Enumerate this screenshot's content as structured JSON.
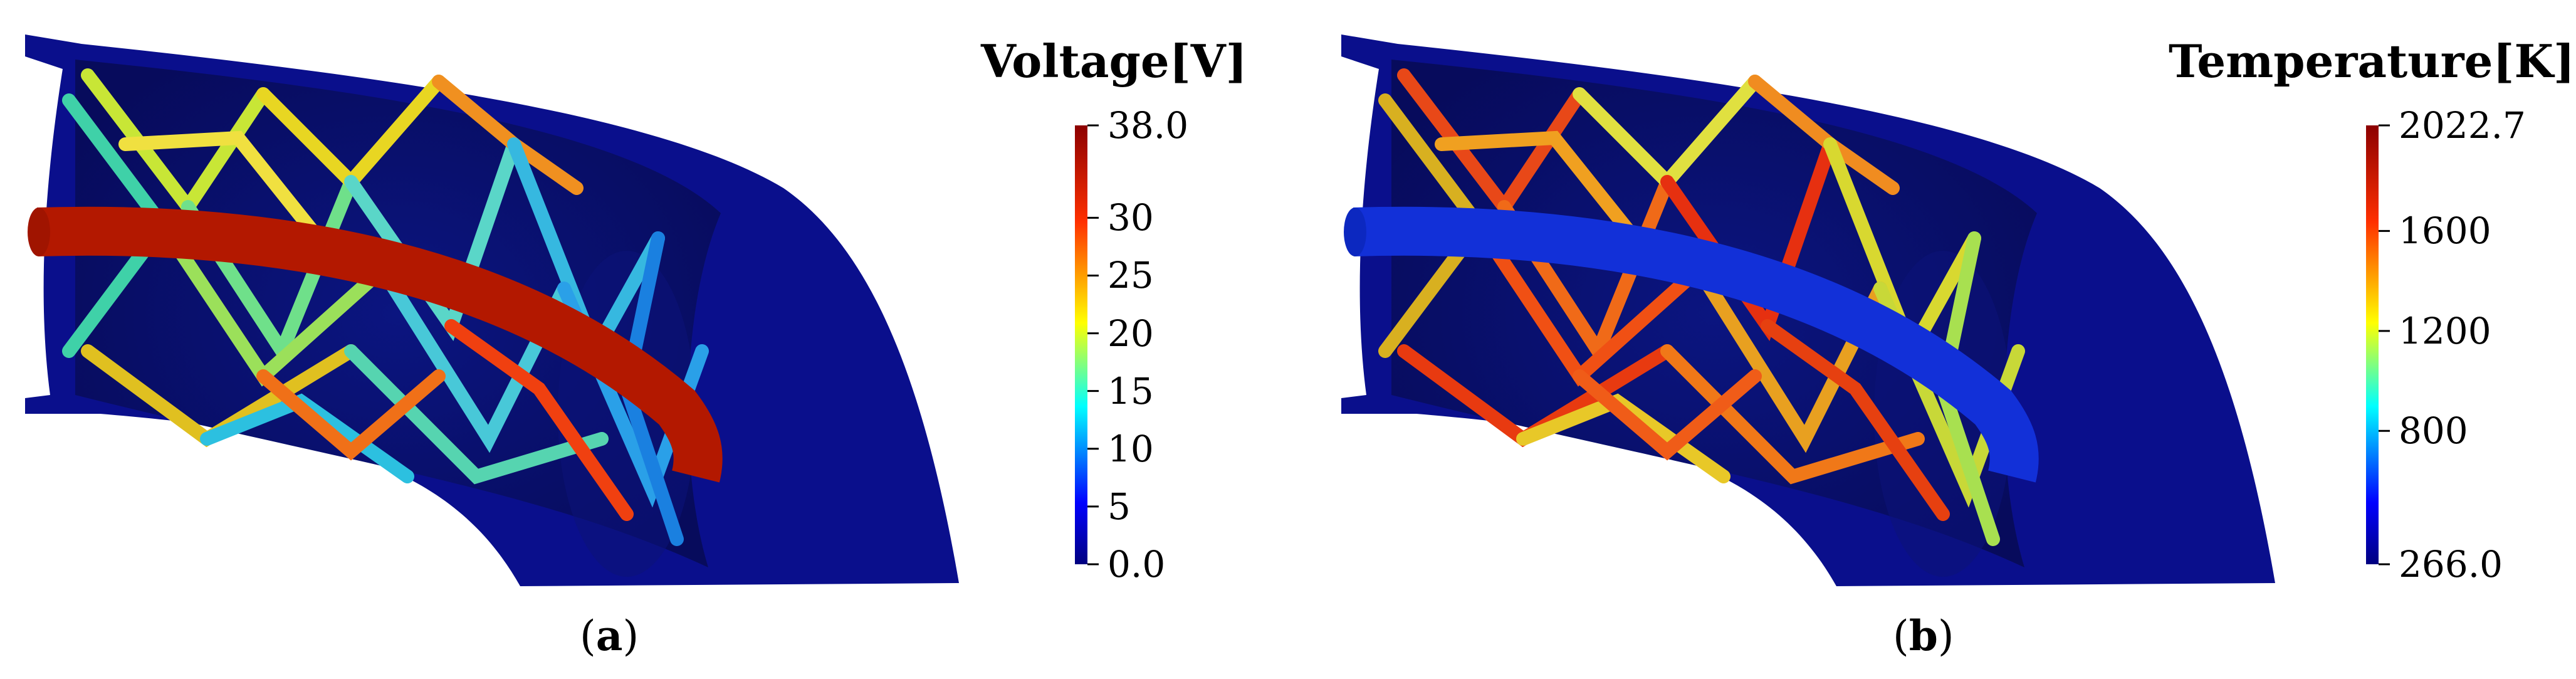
{
  "panel_a": {
    "caption_letter": "a",
    "colorbar": {
      "title": "Voltage[V]",
      "min": 0.0,
      "max": 38.0,
      "ticks": [
        {
          "value": 38.0,
          "label": "38.0"
        },
        {
          "value": 30,
          "label": "30"
        },
        {
          "value": 25,
          "label": "25"
        },
        {
          "value": 20,
          "label": "20"
        },
        {
          "value": 15,
          "label": "15"
        },
        {
          "value": 10,
          "label": "10"
        },
        {
          "value": 5,
          "label": "5"
        },
        {
          "value": 0.0,
          "label": "0.0"
        }
      ]
    },
    "colors": {
      "body": "#0a0f8c",
      "rod": "#b31800"
    }
  },
  "panel_b": {
    "caption_letter": "b",
    "colorbar": {
      "title": "Temperature[K]",
      "min": 266.0,
      "max": 2022.7,
      "ticks": [
        {
          "value": 2022.7,
          "label": "2022.7"
        },
        {
          "value": 1600,
          "label": "1600"
        },
        {
          "value": 1200,
          "label": "1200"
        },
        {
          "value": 800,
          "label": "800"
        },
        {
          "value": 266.0,
          "label": "266.0"
        }
      ]
    },
    "colors": {
      "body": "#0a0f8c",
      "rod": "#1230d8"
    }
  }
}
